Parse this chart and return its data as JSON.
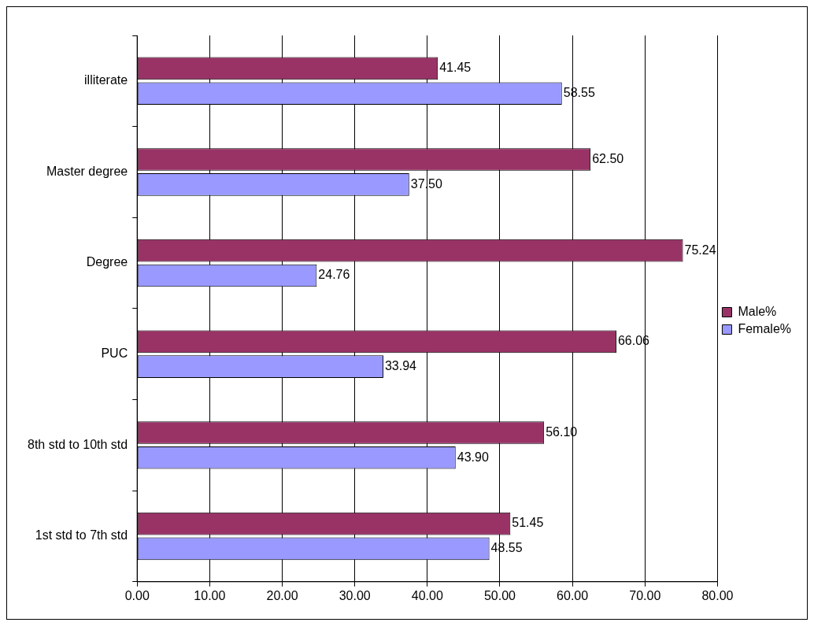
{
  "chart_data": {
    "type": "bar",
    "orientation": "horizontal",
    "categories": [
      "illiterate",
      "Master degree",
      "Degree",
      "PUC",
      "8th std to 10th std",
      "1st std to 7th std"
    ],
    "series": [
      {
        "name": "Male%",
        "color": "#993366",
        "values": [
          41.45,
          62.5,
          75.24,
          66.06,
          56.1,
          51.45
        ],
        "value_labels": [
          "41.45",
          "62.50",
          "75.24",
          "66.06",
          "56.10",
          "51.45"
        ]
      },
      {
        "name": "Female%",
        "color": "#9999ff",
        "values": [
          58.55,
          37.5,
          24.76,
          33.94,
          43.9,
          48.55
        ],
        "value_labels": [
          "58.55",
          "37.50",
          "24.76",
          "33.94",
          "43.90",
          "48.55"
        ]
      }
    ],
    "xlim": [
      0,
      80
    ],
    "xticks": [
      {
        "value": 0,
        "label": "0.00"
      },
      {
        "value": 10,
        "label": "10.00"
      },
      {
        "value": 20,
        "label": "20.00"
      },
      {
        "value": 30,
        "label": "30.00"
      },
      {
        "value": 40,
        "label": "40.00"
      },
      {
        "value": 50,
        "label": "50.00"
      },
      {
        "value": 60,
        "label": "60.00"
      },
      {
        "value": 70,
        "label": "70.00"
      },
      {
        "value": 80,
        "label": "80.00"
      }
    ],
    "grid": "x",
    "legend": "right"
  }
}
